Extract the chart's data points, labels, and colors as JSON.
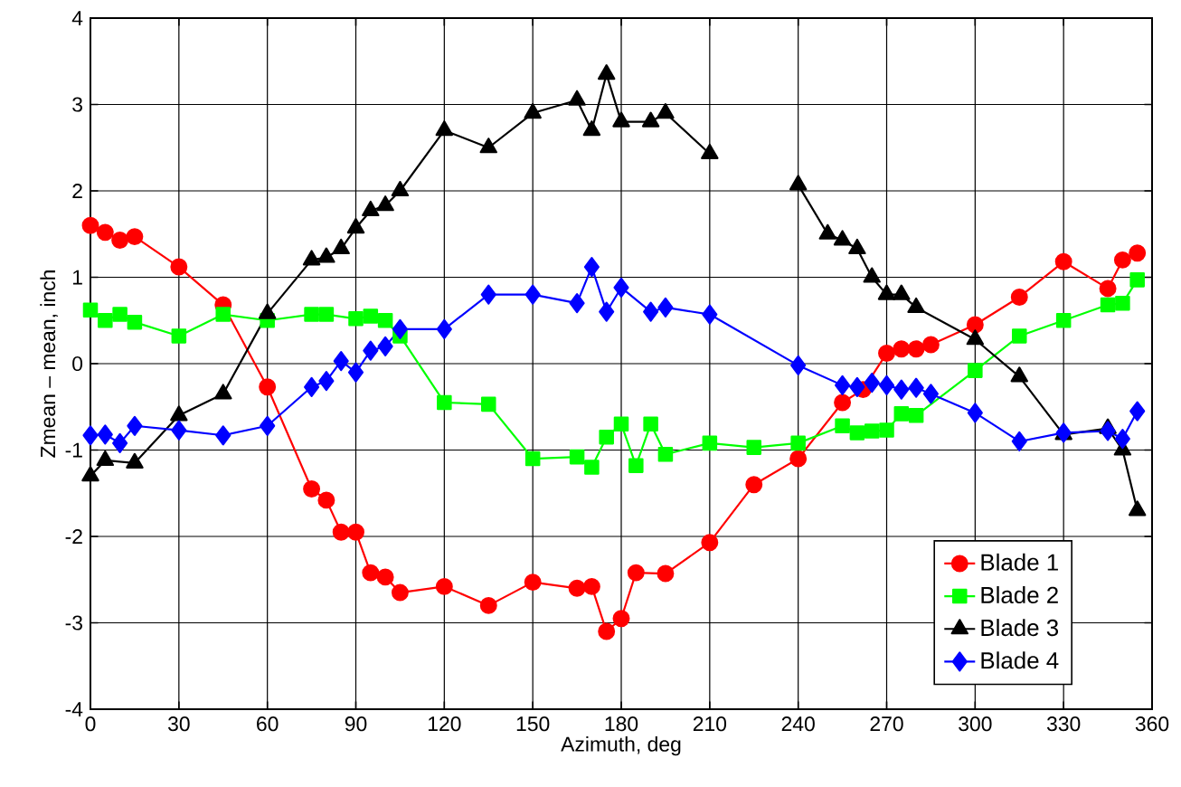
{
  "chart_data": {
    "type": "line",
    "xlabel": "Azimuth, deg",
    "ylabel": "Zmean – mean, inch",
    "xlim": [
      0,
      360
    ],
    "ylim": [
      -4,
      4
    ],
    "xticks": [
      0,
      30,
      60,
      90,
      120,
      150,
      180,
      210,
      240,
      270,
      300,
      330,
      360
    ],
    "yticks": [
      -4,
      -3,
      -2,
      -1,
      0,
      1,
      2,
      3,
      4
    ],
    "grid": true,
    "legend": "bottom right",
    "line_style": "solid",
    "series": [
      {
        "name": "Blade 1",
        "color": "#ff0000",
        "marker": "circle",
        "x": [
          0,
          5,
          10,
          15,
          30,
          45,
          60,
          75,
          80,
          85,
          90,
          95,
          100,
          105,
          120,
          135,
          150,
          165,
          170,
          175,
          180,
          185,
          195,
          210,
          225,
          240,
          255,
          262,
          270,
          275,
          280,
          285,
          300,
          315,
          330,
          345,
          350,
          355
        ],
        "values": [
          1.6,
          1.52,
          1.43,
          1.47,
          1.12,
          0.68,
          -0.27,
          -1.45,
          -1.58,
          -1.95,
          -1.95,
          -2.42,
          -2.47,
          -2.65,
          -2.58,
          -2.8,
          -2.53,
          -2.6,
          -2.58,
          -3.1,
          -2.95,
          -2.42,
          -2.43,
          -2.07,
          -1.4,
          -1.1,
          -0.45,
          -0.3,
          0.12,
          0.17,
          0.17,
          0.22,
          0.45,
          0.77,
          1.18,
          0.87,
          1.2,
          1.28
        ]
      },
      {
        "name": "Blade 2",
        "color": "#00ff00",
        "marker": "square",
        "x": [
          0,
          5,
          10,
          15,
          30,
          45,
          60,
          75,
          80,
          90,
          95,
          100,
          105,
          120,
          135,
          150,
          165,
          170,
          175,
          180,
          185,
          190,
          195,
          210,
          225,
          240,
          255,
          260,
          265,
          270,
          275,
          280,
          300,
          315,
          330,
          345,
          350,
          355
        ],
        "values": [
          0.62,
          0.5,
          0.57,
          0.48,
          0.32,
          0.57,
          0.5,
          0.57,
          0.57,
          0.52,
          0.55,
          0.5,
          0.32,
          -0.45,
          -0.47,
          -1.1,
          -1.08,
          -1.2,
          -0.85,
          -0.7,
          -1.18,
          -0.7,
          -1.05,
          -0.92,
          -0.97,
          -0.92,
          -0.72,
          -0.8,
          -0.78,
          -0.77,
          -0.58,
          -0.6,
          -0.08,
          0.32,
          0.5,
          0.68,
          0.7,
          0.97
        ]
      },
      {
        "name": "Blade 3",
        "color": "#000000",
        "marker": "triangle",
        "x": [
          0,
          5,
          15,
          30,
          45,
          60,
          75,
          80,
          85,
          90,
          95,
          100,
          105,
          120,
          135,
          150,
          165,
          170,
          175,
          180,
          190,
          195,
          210,
          225,
          240,
          250,
          255,
          260,
          265,
          270,
          275,
          280,
          300,
          315,
          330,
          345,
          350,
          355
        ],
        "values": [
          -1.3,
          -1.12,
          -1.15,
          -0.6,
          -0.35,
          0.58,
          1.2,
          1.23,
          1.33,
          1.57,
          1.77,
          1.83,
          2.0,
          2.7,
          2.5,
          2.9,
          3.05,
          2.7,
          3.35,
          2.8,
          2.8,
          2.9,
          2.43,
          null,
          2.07,
          1.5,
          1.43,
          1.33,
          1.0,
          0.8,
          0.8,
          0.65,
          0.28,
          -0.15,
          -0.82,
          -0.75,
          -1.0,
          -1.7
        ]
      },
      {
        "name": "Blade 4",
        "color": "#0000ff",
        "marker": "diamond",
        "x": [
          0,
          5,
          10,
          15,
          30,
          45,
          60,
          75,
          80,
          85,
          90,
          95,
          100,
          105,
          120,
          135,
          150,
          165,
          170,
          175,
          180,
          190,
          195,
          210,
          240,
          255,
          260,
          265,
          270,
          275,
          280,
          285,
          300,
          315,
          330,
          345,
          350,
          355
        ],
        "values": [
          -0.83,
          -0.82,
          -0.92,
          -0.72,
          -0.77,
          -0.83,
          -0.72,
          -0.27,
          -0.2,
          0.03,
          -0.1,
          0.15,
          0.2,
          0.4,
          0.4,
          0.8,
          0.8,
          0.7,
          1.12,
          0.6,
          0.88,
          0.6,
          0.65,
          0.57,
          -0.02,
          -0.25,
          -0.27,
          -0.22,
          -0.25,
          -0.3,
          -0.28,
          -0.35,
          -0.57,
          -0.9,
          -0.8,
          -0.78,
          -0.87,
          -0.55
        ]
      }
    ]
  }
}
